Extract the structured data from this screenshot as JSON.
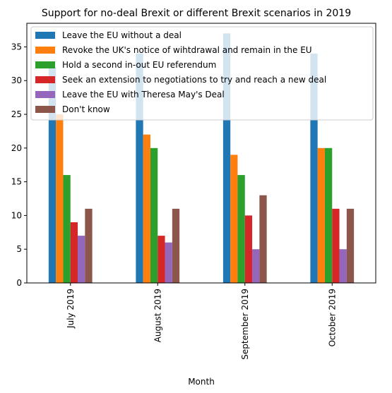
{
  "chart_data": {
    "type": "bar",
    "title": "Support for no-deal Brexit or different Brexit scenarios in 2019",
    "xlabel": "Month",
    "ylabel": "",
    "categories": [
      "July 2019",
      "August 2019",
      "September 2019",
      "October 2019"
    ],
    "ylim": [
      0,
      38.5
    ],
    "yticks": [
      0,
      5,
      10,
      15,
      20,
      25,
      30,
      35
    ],
    "grid": false,
    "legend_position": "top-left",
    "series": [
      {
        "name": "Leave the EU without a deal",
        "color": "#1f77b4",
        "values": [
          32,
          34,
          37,
          34
        ]
      },
      {
        "name": "Revoke the UK's notice of wihtdrawal and remain in the EU",
        "color": "#ff7f0e",
        "values": [
          25,
          22,
          19,
          20
        ]
      },
      {
        "name": "Hold a second in-out EU referendum",
        "color": "#2ca02c",
        "values": [
          16,
          20,
          16,
          20
        ]
      },
      {
        "name": "Seek an extension to negotiations to try and reach a new deal",
        "color": "#d62728",
        "values": [
          9,
          7,
          10,
          11
        ]
      },
      {
        "name": "Leave the EU with Theresa May's Deal",
        "color": "#9467bd",
        "values": [
          7,
          6,
          5,
          5
        ]
      },
      {
        "name": "Don't know",
        "color": "#8c564b",
        "values": [
          11,
          11,
          13,
          11
        ]
      }
    ]
  }
}
